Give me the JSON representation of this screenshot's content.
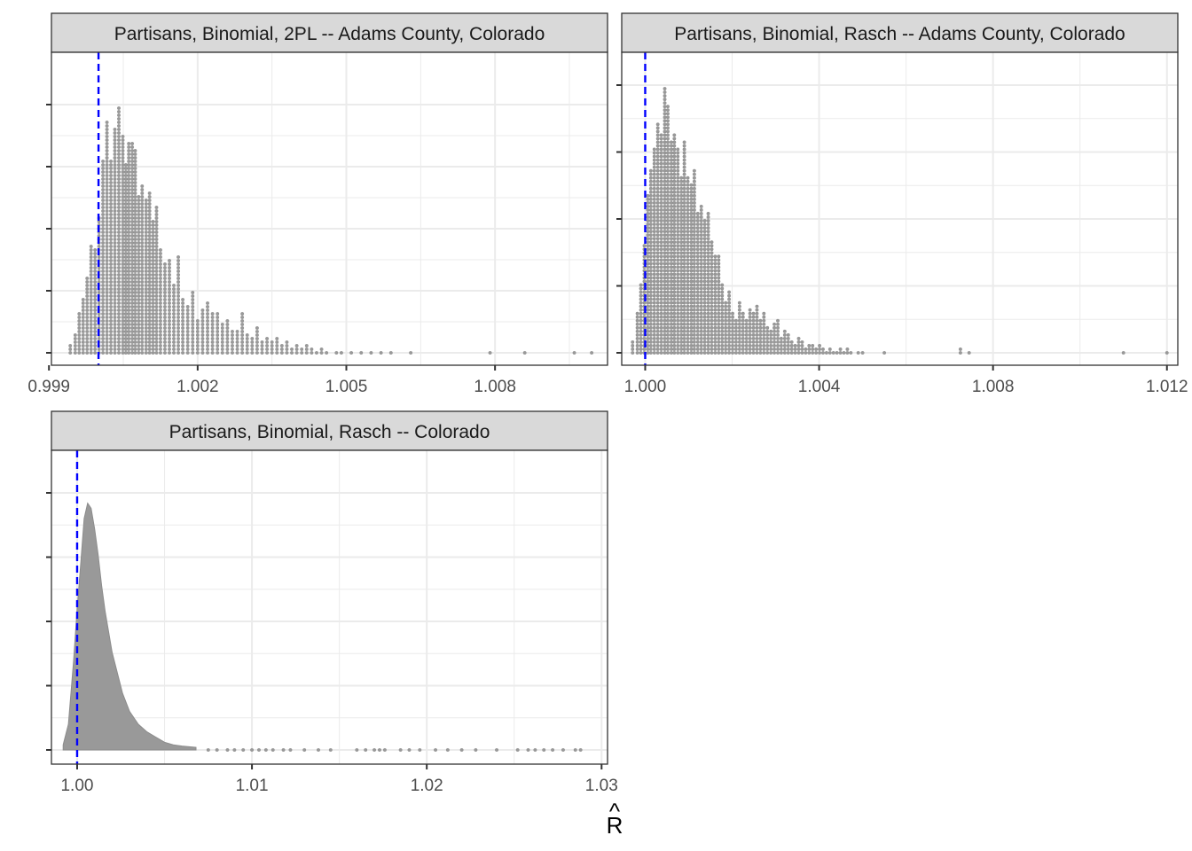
{
  "figure": {
    "x_axis_title": "R",
    "x_axis_title_hat": "^"
  },
  "chart_data": [
    {
      "type": "dotplot",
      "title": "Partisans, Binomial, 2PL -- Adams County, Colorado",
      "xlim": [
        0.99905,
        1.01027
      ],
      "ylim": [
        0,
        1
      ],
      "x_ticks": [
        0.999,
        1.002,
        1.005,
        1.008
      ],
      "x_tick_labels": [
        "0.999",
        "1.002",
        "1.005",
        "1.008"
      ],
      "reference_line": 1.0,
      "grid": true,
      "dot_color": "#999999",
      "line_color": "#0000ff",
      "bins": [
        [
          0.99943,
          3
        ],
        [
          0.99953,
          6
        ],
        [
          0.99961,
          12
        ],
        [
          0.99969,
          16
        ],
        [
          0.99977,
          22
        ],
        [
          0.99985,
          31
        ],
        [
          0.99993,
          30
        ],
        [
          1.00001,
          39
        ],
        [
          1.00009,
          55
        ],
        [
          1.00017,
          66
        ],
        [
          1.00025,
          55
        ],
        [
          1.00033,
          64
        ],
        [
          1.00041,
          70
        ],
        [
          1.00049,
          62
        ],
        [
          1.00055,
          54
        ],
        [
          1.00061,
          60
        ],
        [
          1.00068,
          60
        ],
        [
          1.00074,
          58
        ],
        [
          1.00081,
          45
        ],
        [
          1.00088,
          48
        ],
        [
          1.00096,
          44
        ],
        [
          1.00103,
          46
        ],
        [
          1.0011,
          38
        ],
        [
          1.00117,
          42
        ],
        [
          1.00125,
          30
        ],
        [
          1.00134,
          26
        ],
        [
          1.00143,
          27
        ],
        [
          1.00152,
          20
        ],
        [
          1.00161,
          28
        ],
        [
          1.0017,
          16
        ],
        [
          1.0018,
          14
        ],
        [
          1.0019,
          18
        ],
        [
          1.002,
          10
        ],
        [
          1.0021,
          13
        ],
        [
          1.0022,
          15
        ],
        [
          1.0023,
          12
        ],
        [
          1.0024,
          12
        ],
        [
          1.0025,
          9
        ],
        [
          1.0026,
          10
        ],
        [
          1.0027,
          7
        ],
        [
          1.0028,
          7
        ],
        [
          1.0029,
          12
        ],
        [
          1.003,
          6
        ],
        [
          1.0031,
          5
        ],
        [
          1.0032,
          8
        ],
        [
          1.0033,
          4
        ],
        [
          1.0034,
          5
        ],
        [
          1.0035,
          4
        ],
        [
          1.0036,
          5
        ],
        [
          1.0037,
          3
        ],
        [
          1.0038,
          4
        ],
        [
          1.0039,
          2
        ],
        [
          1.004,
          3
        ],
        [
          1.0041,
          2
        ],
        [
          1.0042,
          3
        ],
        [
          1.0043,
          2
        ],
        [
          1.0044,
          1
        ],
        [
          1.0045,
          2
        ],
        [
          1.0046,
          1
        ],
        [
          1.0048,
          1
        ],
        [
          1.0049,
          1
        ],
        [
          1.0051,
          1
        ],
        [
          1.0053,
          1
        ],
        [
          1.0055,
          1
        ],
        [
          1.0057,
          1
        ],
        [
          1.0059,
          1
        ],
        [
          1.0063,
          1
        ],
        [
          1.0079,
          1
        ],
        [
          1.0086,
          1
        ],
        [
          1.0096,
          1
        ],
        [
          1.00995,
          1
        ]
      ]
    },
    {
      "type": "dotplot",
      "title": "Partisans, Binomial, Rasch -- Adams County, Colorado",
      "xlim": [
        0.99946,
        1.01225
      ],
      "ylim": [
        0,
        1
      ],
      "x_ticks": [
        1.0,
        1.004,
        1.008,
        1.012
      ],
      "x_tick_labels": [
        "1.000",
        "1.004",
        "1.008",
        "1.012"
      ],
      "reference_line": 1.0,
      "grid": true,
      "dot_color": "#999999",
      "line_color": "#0000ff",
      "bins": [
        [
          0.99971,
          4
        ],
        [
          0.99982,
          12
        ],
        [
          0.9999,
          20
        ],
        [
          0.99998,
          31
        ],
        [
          1.00006,
          45
        ],
        [
          1.00013,
          52
        ],
        [
          1.00021,
          58
        ],
        [
          1.00029,
          65
        ],
        [
          1.00037,
          62
        ],
        [
          1.00045,
          75
        ],
        [
          1.00052,
          70
        ],
        [
          1.0006,
          60
        ],
        [
          1.00067,
          62
        ],
        [
          1.00075,
          58
        ],
        [
          1.00083,
          50
        ],
        [
          1.0009,
          60
        ],
        [
          1.00098,
          50
        ],
        [
          1.00106,
          48
        ],
        [
          1.00113,
          52
        ],
        [
          1.00121,
          40
        ],
        [
          1.00129,
          42
        ],
        [
          1.00137,
          38
        ],
        [
          1.00145,
          40
        ],
        [
          1.00153,
          32
        ],
        [
          1.00161,
          28
        ],
        [
          1.00169,
          28
        ],
        [
          1.00177,
          20
        ],
        [
          1.00185,
          15
        ],
        [
          1.00193,
          18
        ],
        [
          1.00201,
          12
        ],
        [
          1.00209,
          10
        ],
        [
          1.00217,
          15
        ],
        [
          1.00225,
          12
        ],
        [
          1.00233,
          10
        ],
        [
          1.00241,
          13
        ],
        [
          1.00249,
          12
        ],
        [
          1.00257,
          14
        ],
        [
          1.00265,
          10
        ],
        [
          1.00273,
          12
        ],
        [
          1.00281,
          8
        ],
        [
          1.00289,
          7
        ],
        [
          1.00297,
          9
        ],
        [
          1.00305,
          10
        ],
        [
          1.00313,
          5
        ],
        [
          1.00321,
          7
        ],
        [
          1.00329,
          6
        ],
        [
          1.00337,
          4
        ],
        [
          1.00345,
          3
        ],
        [
          1.00353,
          5
        ],
        [
          1.00361,
          4
        ],
        [
          1.00369,
          2
        ],
        [
          1.00377,
          3
        ],
        [
          1.00385,
          3
        ],
        [
          1.00393,
          2
        ],
        [
          1.00401,
          3
        ],
        [
          1.00409,
          2
        ],
        [
          1.00417,
          1
        ],
        [
          1.00425,
          2
        ],
        [
          1.00433,
          1
        ],
        [
          1.00441,
          1
        ],
        [
          1.00449,
          2
        ],
        [
          1.00457,
          1
        ],
        [
          1.00465,
          2
        ],
        [
          1.00473,
          1
        ],
        [
          1.0049,
          1
        ],
        [
          1.005,
          1
        ],
        [
          1.0055,
          1
        ],
        [
          1.00725,
          2
        ],
        [
          1.00745,
          1
        ],
        [
          1.011,
          1
        ],
        [
          1.012,
          1
        ]
      ]
    },
    {
      "type": "dotplot",
      "title": "Partisans, Binomial, Rasch -- Colorado",
      "xlim": [
        0.99853,
        1.03034
      ],
      "ylim": [
        0,
        1
      ],
      "x_ticks": [
        1.0,
        1.01,
        1.02,
        1.03
      ],
      "x_tick_labels": [
        "1.00",
        "1.01",
        "1.02",
        "1.03"
      ],
      "reference_line": 1.0,
      "grid": true,
      "dot_color": "#999999",
      "line_color": "#0000ff",
      "profile": [
        [
          0.9992,
          0.02
        ],
        [
          0.9995,
          0.1
        ],
        [
          0.9998,
          0.35
        ],
        [
          1.0,
          0.55
        ],
        [
          1.0002,
          0.72
        ],
        [
          1.0004,
          0.9
        ],
        [
          1.0006,
          0.96
        ],
        [
          1.0008,
          0.94
        ],
        [
          1.001,
          0.86
        ],
        [
          1.0012,
          0.76
        ],
        [
          1.0014,
          0.64
        ],
        [
          1.0016,
          0.54
        ],
        [
          1.0018,
          0.46
        ],
        [
          1.002,
          0.38
        ],
        [
          1.0023,
          0.3
        ],
        [
          1.0026,
          0.22
        ],
        [
          1.003,
          0.15
        ],
        [
          1.0035,
          0.1
        ],
        [
          1.004,
          0.07
        ],
        [
          1.0045,
          0.05
        ],
        [
          1.005,
          0.03
        ],
        [
          1.0055,
          0.02
        ],
        [
          1.006,
          0.015
        ],
        [
          1.0068,
          0.01
        ]
      ],
      "tail_points": [
        1.0075,
        1.008,
        1.0086,
        1.009,
        1.0095,
        1.01,
        1.0104,
        1.0108,
        1.0112,
        1.0118,
        1.0122,
        1.013,
        1.0138,
        1.0145,
        1.016,
        1.0165,
        1.017,
        1.0173,
        1.0176,
        1.0185,
        1.019,
        1.0196,
        1.0205,
        1.0212,
        1.022,
        1.0228,
        1.024,
        1.0252,
        1.0258,
        1.0262,
        1.0267,
        1.0272,
        1.0278,
        1.0285,
        1.0288
      ]
    }
  ]
}
